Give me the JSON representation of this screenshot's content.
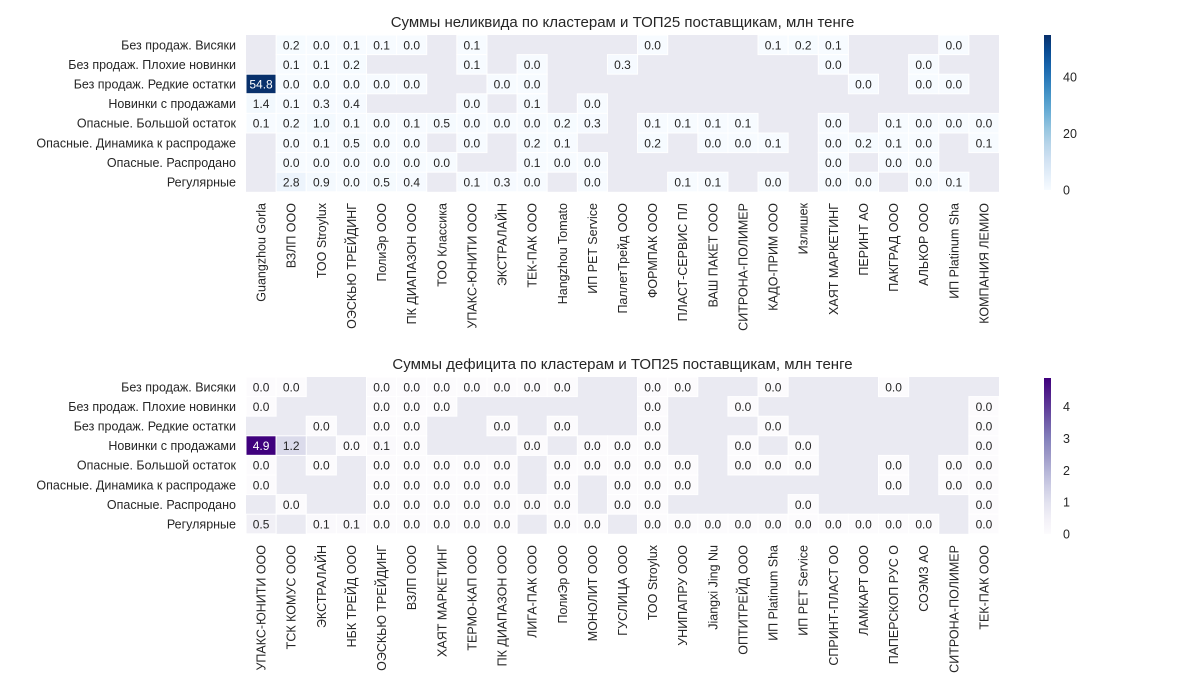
{
  "chart_data": [
    {
      "type": "heatmap",
      "title": "Суммы неликвида по кластерам и ТОП25 поставщикам, млн тенге",
      "colormap": "Blues",
      "vmax": 54.8,
      "colorbar_ticks": [
        0,
        20,
        40
      ],
      "rows": [
        "Без продаж. Висяки",
        "Без продаж. Плохие новинки",
        "Без продаж. Редкие остатки",
        "Новинки с продажами",
        "Опасные. Большой остаток",
        "Опасные. Динамика к распродаже",
        "Опасные. Распродано",
        "Регулярные"
      ],
      "columns": [
        "Guangzhou Gorla",
        "ВЗЛП ООО",
        "ТОО Stroylux",
        "ОЭСКЬЮ ТРЕЙДИНГ",
        "ПолиЭр ООО",
        "ПК ДИАПАЗОН ООО",
        "ТОО Классика",
        "УПАКС-ЮНИТИ ООО",
        "ЭКСТРАЛАЙН",
        "ТЕК-ПАК ООО",
        "Hangzhou Tomato",
        "ИП PET Service",
        "ПаллетТрейд ООО",
        "ФОРМПАК ООО",
        "ПЛАСТ-СЕРВИС ПЛ",
        "ВАШ ПАКЕТ ООО",
        "СИТРОНА-ПОЛИМЕР",
        "КАДО-ПРИМ ООО",
        "Излишек",
        "ХАЯТ МАРКЕТИНГ",
        "ПЕРИНТ АО",
        "ПАКГРАД ООО",
        "АЛЬКОР ООО",
        "ИП Platinum Sha",
        "КОМПАНИЯ ЛЕМИО"
      ],
      "values": [
        [
          null,
          0.2,
          0.0,
          0.1,
          0.1,
          0.0,
          null,
          0.1,
          null,
          null,
          null,
          null,
          null,
          0.0,
          null,
          null,
          null,
          0.1,
          0.2,
          0.1,
          null,
          null,
          null,
          0.0,
          null
        ],
        [
          null,
          0.1,
          0.1,
          0.2,
          null,
          null,
          null,
          0.1,
          null,
          0.0,
          null,
          null,
          0.3,
          null,
          null,
          null,
          null,
          null,
          null,
          0.0,
          null,
          null,
          0.0,
          null,
          null
        ],
        [
          54.8,
          0.0,
          0.0,
          0.0,
          0.0,
          0.0,
          null,
          null,
          0.0,
          0.0,
          null,
          null,
          null,
          null,
          null,
          null,
          null,
          null,
          null,
          null,
          0.0,
          null,
          0.0,
          0.0,
          null
        ],
        [
          1.4,
          0.1,
          0.3,
          0.4,
          null,
          null,
          null,
          0.0,
          null,
          0.1,
          null,
          0.0,
          null,
          null,
          null,
          null,
          null,
          null,
          null,
          null,
          null,
          null,
          null,
          null,
          null
        ],
        [
          0.1,
          0.2,
          1.0,
          0.1,
          0.0,
          0.1,
          0.5,
          0.0,
          0.0,
          0.0,
          0.2,
          0.3,
          null,
          0.1,
          0.1,
          0.1,
          0.1,
          null,
          null,
          0.0,
          null,
          0.1,
          0.0,
          0.0,
          0.0
        ],
        [
          null,
          0.0,
          0.1,
          0.5,
          0.0,
          0.0,
          null,
          0.0,
          null,
          0.2,
          0.1,
          null,
          null,
          0.2,
          null,
          0.0,
          0.0,
          0.1,
          null,
          0.0,
          0.2,
          0.1,
          0.0,
          null,
          0.1
        ],
        [
          null,
          0.0,
          0.0,
          0.0,
          0.0,
          0.0,
          0.0,
          null,
          null,
          0.1,
          0.0,
          0.0,
          null,
          null,
          null,
          null,
          null,
          null,
          null,
          0.0,
          null,
          0.0,
          0.0,
          null,
          null
        ],
        [
          null,
          2.8,
          0.9,
          0.0,
          0.5,
          0.4,
          null,
          0.1,
          0.3,
          0.0,
          null,
          0.0,
          null,
          null,
          0.1,
          0.1,
          null,
          0.0,
          null,
          0.0,
          0.0,
          null,
          0.0,
          0.1,
          null
        ]
      ]
    },
    {
      "type": "heatmap",
      "title": "Суммы дефицита по кластерам и ТОП25 поставщикам, млн тенге",
      "colormap": "Purples",
      "vmax": 4.9,
      "colorbar_ticks": [
        0,
        1,
        2,
        3,
        4
      ],
      "rows": [
        "Без продаж. Висяки",
        "Без продаж. Плохие новинки",
        "Без продаж. Редкие остатки",
        "Новинки с продажами",
        "Опасные. Большой остаток",
        "Опасные. Динамика к распродаже",
        "Опасные. Распродано",
        "Регулярные"
      ],
      "columns": [
        "УПАКС-ЮНИТИ ООО",
        "ТСК КОМУС ООО",
        "ЭКСТРАЛАЙН",
        "НБК ТРЕЙД ООО",
        "ОЭСКЬЮ ТРЕЙДИНГ",
        "ВЗЛП ООО",
        "ХАЯТ МАРКЕТИНГ",
        "ТЕРМО-КАП ООО",
        "ПК ДИАПАЗОН ООО",
        "ЛИГА-ПАК ООО",
        "ПолиЭр ООО",
        "МОНОЛИТ ООО",
        "ГУСЛИЦА ООО",
        "ТОО Stroylux",
        "УНИПАПРУ ООО",
        "Jiangxi Jing Nu",
        "ОПТИТРЕЙД ООО",
        "ИП Platinum Sha",
        "ИП PET Service",
        "СПРИНТ-ПЛАСТ ОО",
        "ЛАМКАРТ ООО",
        "ПАПЕРСКОП РУС О",
        "СОЭМЗ АО",
        "СИТРОНА-ПОЛИМЕР",
        "ТЕК-ПАК ООО"
      ],
      "values": [
        [
          0.0,
          0.0,
          null,
          null,
          0.0,
          0.0,
          0.0,
          0.0,
          0.0,
          0.0,
          0.0,
          null,
          null,
          0.0,
          0.0,
          null,
          null,
          0.0,
          null,
          null,
          null,
          0.0,
          null,
          null,
          null
        ],
        [
          0.0,
          null,
          null,
          null,
          0.0,
          0.0,
          0.0,
          null,
          null,
          null,
          null,
          null,
          null,
          0.0,
          null,
          null,
          0.0,
          null,
          null,
          null,
          null,
          null,
          null,
          null,
          0.0
        ],
        [
          null,
          null,
          0.0,
          null,
          0.0,
          0.0,
          null,
          null,
          0.0,
          null,
          0.0,
          null,
          null,
          0.0,
          null,
          null,
          null,
          0.0,
          null,
          null,
          null,
          null,
          null,
          null,
          0.0
        ],
        [
          4.9,
          1.2,
          null,
          0.0,
          0.1,
          0.0,
          null,
          null,
          null,
          0.0,
          null,
          0.0,
          0.0,
          0.0,
          null,
          null,
          0.0,
          null,
          0.0,
          null,
          null,
          null,
          null,
          null,
          0.0
        ],
        [
          0.0,
          null,
          0.0,
          null,
          0.0,
          0.0,
          0.0,
          0.0,
          0.0,
          null,
          0.0,
          0.0,
          0.0,
          0.0,
          0.0,
          null,
          0.0,
          0.0,
          0.0,
          null,
          null,
          0.0,
          null,
          0.0,
          0.0
        ],
        [
          0.0,
          null,
          null,
          null,
          0.0,
          0.0,
          0.0,
          0.0,
          0.0,
          null,
          0.0,
          null,
          0.0,
          0.0,
          0.0,
          null,
          null,
          null,
          null,
          null,
          null,
          0.0,
          null,
          0.0,
          0.0
        ],
        [
          null,
          0.0,
          null,
          null,
          0.0,
          0.0,
          0.0,
          0.0,
          0.0,
          0.0,
          0.0,
          null,
          0.0,
          0.0,
          null,
          null,
          null,
          null,
          0.0,
          null,
          null,
          null,
          null,
          null,
          0.0
        ],
        [
          0.5,
          null,
          0.1,
          0.1,
          0.0,
          0.0,
          0.0,
          0.0,
          0.0,
          null,
          0.0,
          0.0,
          null,
          0.0,
          0.0,
          0.0,
          0.0,
          0.0,
          0.0,
          0.0,
          0.0,
          0.0,
          0.0,
          null,
          0.0
        ]
      ]
    }
  ]
}
